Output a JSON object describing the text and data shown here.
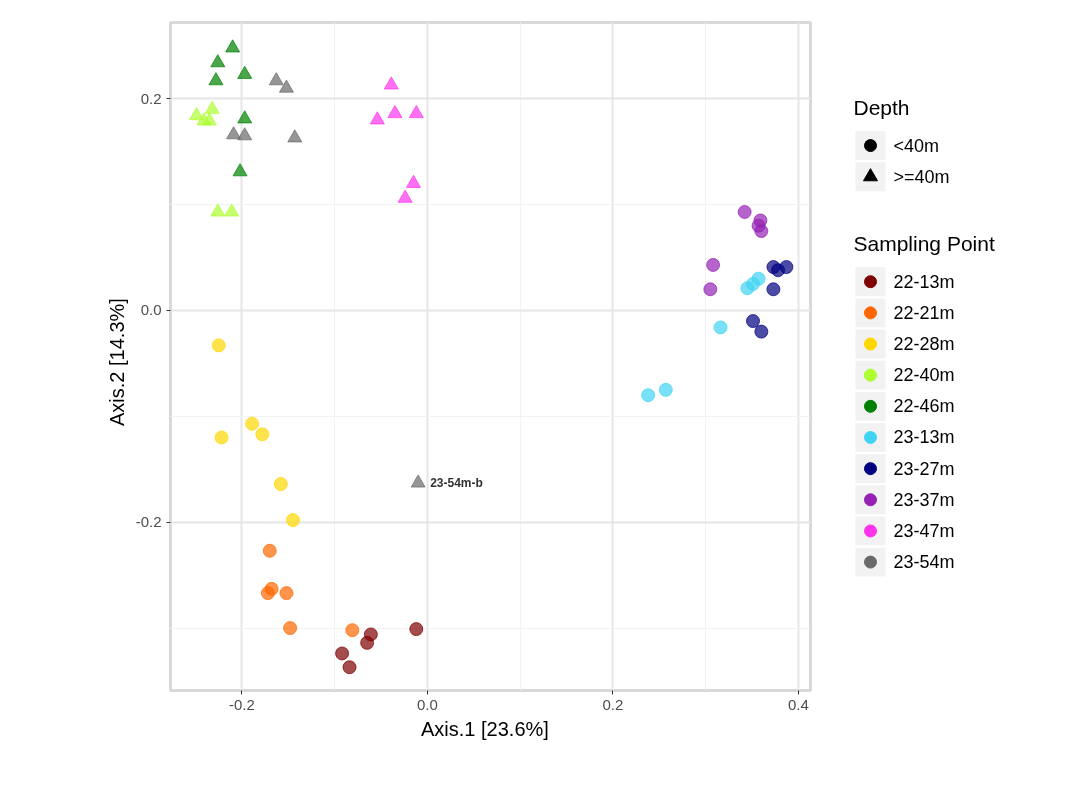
{
  "chart_data": {
    "type": "scatter",
    "xlabel": "Axis.1   [23.6%]",
    "ylabel": "Axis.2   [14.3%]",
    "xlim": [
      -0.277,
      0.413
    ],
    "ylim": [
      -0.359,
      0.272
    ],
    "xticks": [
      -0.2,
      {
        "value": 0.0,
        "label": "0.0"
      },
      0.2,
      0.4
    ],
    "yticks": [
      -0.2,
      {
        "value": 0.0,
        "label": "0.0"
      },
      0.2
    ],
    "grid": true,
    "legend": "right",
    "legend_title": [
      "Depth",
      "Sampling Point"
    ],
    "annotations": [
      {
        "text": "23-54m-b",
        "x": -0.01,
        "y": -0.163
      }
    ],
    "series": [
      {
        "name": "<40m",
        "color": "#000000",
        "marker": "circle"
      },
      {
        "name": ">=40m",
        "color": "#000000",
        "marker": "triangle"
      },
      {
        "name": "22-13m",
        "color": "#7f0000",
        "marker": "circle",
        "x": [
          -0.092,
          -0.084,
          -0.065,
          -0.061,
          -0.012
        ],
        "values": [
          -0.324,
          -0.337,
          -0.314,
          -0.306,
          -0.301
        ]
      },
      {
        "name": "22-21m",
        "color": "#ff6600",
        "marker": "circle",
        "x": [
          -0.17,
          -0.168,
          -0.172,
          -0.152,
          -0.148,
          -0.081
        ],
        "values": [
          -0.227,
          -0.263,
          -0.267,
          -0.267,
          -0.3,
          -0.302
        ]
      },
      {
        "name": "22-28m",
        "color": "#ffd700",
        "marker": "circle",
        "x": [
          -0.225,
          -0.222,
          -0.189,
          -0.178,
          -0.158,
          -0.145
        ],
        "values": [
          -0.033,
          -0.12,
          -0.107,
          -0.117,
          -0.164,
          -0.198
        ]
      },
      {
        "name": "22-40m",
        "color": "#adff2f",
        "marker": "triangle",
        "x": [
          -0.249,
          -0.232,
          -0.241,
          -0.235,
          -0.226,
          -0.211
        ],
        "values": [
          0.184,
          0.19,
          0.179,
          0.179,
          0.093,
          0.093
        ]
      },
      {
        "name": "22-46m",
        "color": "#008000",
        "marker": "triangle",
        "x": [
          -0.21,
          -0.226,
          -0.228,
          -0.197,
          -0.197,
          -0.202
        ],
        "values": [
          0.248,
          0.234,
          0.217,
          0.223,
          0.181,
          0.131
        ]
      },
      {
        "name": "23-13m",
        "color": "#40d4f4",
        "marker": "circle",
        "x": [
          0.345,
          0.351,
          0.357,
          0.316,
          0.257,
          0.238
        ],
        "values": [
          0.021,
          0.025,
          0.03,
          -0.016,
          -0.075,
          -0.08
        ]
      },
      {
        "name": "23-27m",
        "color": "#000080",
        "marker": "circle",
        "x": [
          0.373,
          0.378,
          0.387,
          0.373,
          0.351,
          0.36
        ],
        "values": [
          0.041,
          0.038,
          0.041,
          0.02,
          -0.01,
          -0.02
        ]
      },
      {
        "name": "23-37m",
        "color": "#9422b4",
        "marker": "circle",
        "x": [
          0.342,
          0.359,
          0.357,
          0.36,
          0.308,
          0.305
        ],
        "values": [
          0.093,
          0.085,
          0.08,
          0.075,
          0.043,
          0.02
        ]
      },
      {
        "name": "23-47m",
        "color": "#ff33ee",
        "marker": "triangle",
        "x": [
          -0.039,
          -0.054,
          -0.035,
          -0.012,
          -0.015,
          -0.024
        ],
        "values": [
          0.213,
          0.18,
          0.186,
          0.186,
          0.12,
          0.106
        ]
      },
      {
        "name": "23-54m",
        "color": "#696969",
        "marker": "triangle",
        "x": [
          -0.163,
          -0.152,
          -0.209,
          -0.197,
          -0.143,
          -0.01
        ],
        "values": [
          0.217,
          0.21,
          0.166,
          0.165,
          0.163,
          -0.163
        ]
      }
    ]
  }
}
